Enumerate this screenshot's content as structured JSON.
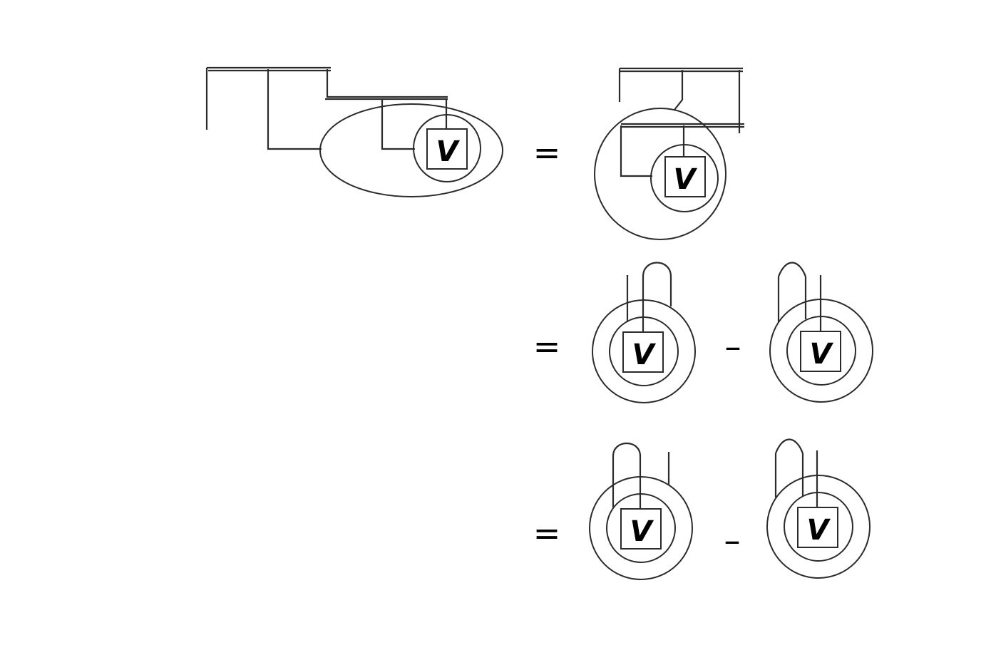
{
  "diagram": {
    "node_label": "V",
    "equals_sign": "=",
    "minus_sign": "–"
  }
}
